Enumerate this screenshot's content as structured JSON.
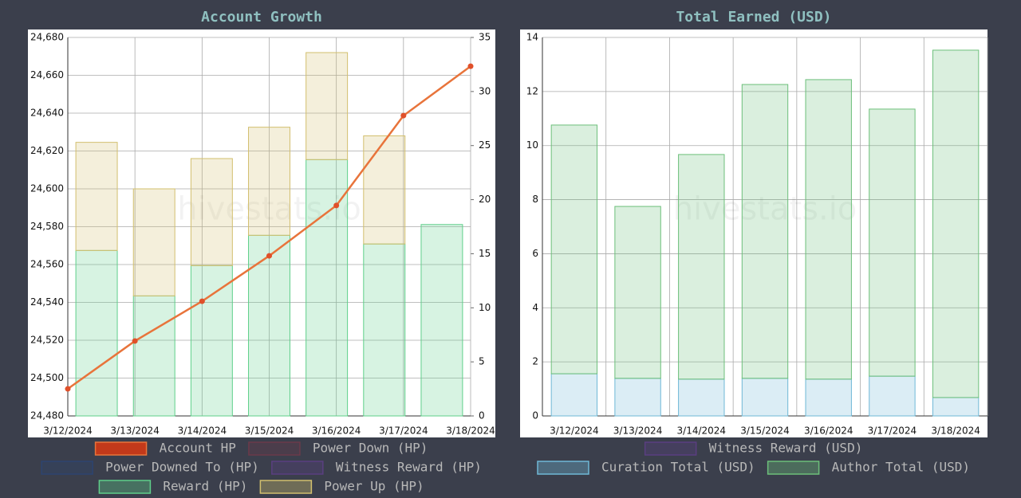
{
  "chart_data": [
    {
      "type": "bar",
      "title": "Account Growth",
      "watermark": "hivestats.io",
      "categories": [
        "3/12/2024",
        "3/13/2024",
        "3/14/2024",
        "3/15/2024",
        "3/16/2024",
        "3/17/2024",
        "3/18/2024"
      ],
      "ylim": [
        24480,
        24680
      ],
      "yticks": [
        {
          "value": 24480,
          "label": "24,480"
        },
        {
          "value": 24500,
          "label": "24,500"
        },
        {
          "value": 24520,
          "label": "24,520"
        },
        {
          "value": 24540,
          "label": "24,540"
        },
        {
          "value": 24560,
          "label": "24,560"
        },
        {
          "value": 24580,
          "label": "24,580"
        },
        {
          "value": 24600,
          "label": "24,600"
        },
        {
          "value": 24620,
          "label": "24,620"
        },
        {
          "value": 24640,
          "label": "24,640"
        },
        {
          "value": 24660,
          "label": "24,660"
        },
        {
          "value": 24680,
          "label": "24,680"
        }
      ],
      "y2lim": [
        0,
        35
      ],
      "y2ticks": [
        0,
        5,
        10,
        15,
        20,
        25,
        30,
        35
      ],
      "grid": true,
      "series": [
        {
          "name": "Account HP",
          "type": "line",
          "color": "#e8743b",
          "values": [
            24494.3,
            24519.6,
            24540.6,
            24564.6,
            24591.2,
            24638.7,
            24664.8
          ]
        },
        {
          "name": "Power Down (HP)",
          "color": "#6b3a4a"
        },
        {
          "name": "Power Downed To (HP)",
          "color": "#2d4470"
        },
        {
          "name": "Witness Reward (HP)",
          "color": "#5a3f80"
        },
        {
          "name": "Reward (HP)",
          "type": "bar",
          "axis": "y2",
          "color": "#5fcf8a",
          "values": [
            15.3,
            11.1,
            13.9,
            16.7,
            23.7,
            15.9,
            17.7
          ]
        },
        {
          "name": "Power Up (HP)",
          "type": "bar",
          "axis": "y2",
          "color": "#d2bf6e",
          "values": [
            10,
            9.9,
            9.9,
            10,
            9.9,
            10,
            0
          ]
        }
      ]
    },
    {
      "type": "bar",
      "title": "Total Earned (USD)",
      "watermark": "hivestats.io",
      "categories": [
        "3/12/2024",
        "3/13/2024",
        "3/14/2024",
        "3/15/2024",
        "3/16/2024",
        "3/17/2024",
        "3/18/2024"
      ],
      "ylim": [
        0,
        14
      ],
      "yticks": [
        0,
        2,
        4,
        6,
        8,
        10,
        12,
        14
      ],
      "grid": true,
      "series": [
        {
          "name": "Witness Reward (USD)",
          "color": "#5a3f80"
        },
        {
          "name": "Curation Total (USD)",
          "type": "bar",
          "color": "#6fb8d6",
          "values": [
            1.56,
            1.39,
            1.36,
            1.39,
            1.36,
            1.47,
            0.68
          ]
        },
        {
          "name": "Author Total (USD)",
          "type": "bar",
          "color": "#6cbf7a",
          "values": [
            9.2,
            6.36,
            8.31,
            10.87,
            11.08,
            9.88,
            12.85
          ]
        }
      ]
    }
  ]
}
